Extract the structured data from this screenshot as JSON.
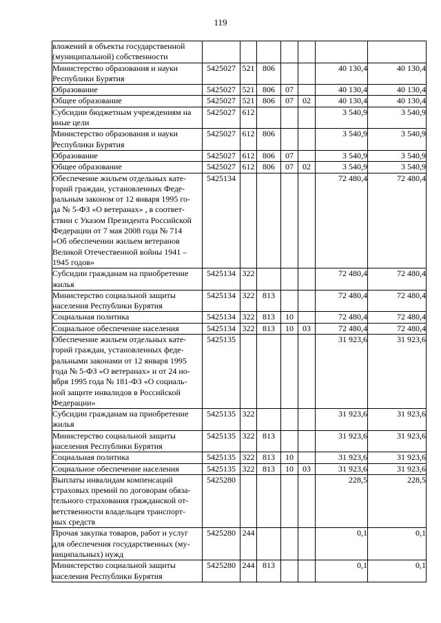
{
  "page": {
    "number": "119"
  },
  "table": {
    "columns": [
      "description",
      "target-code",
      "expense-type",
      "gvbs-code",
      "section",
      "subsection",
      "amount-1",
      "amount-2"
    ],
    "rows": [
      {
        "desc": "вложений в объекты государственной\n(муниципальной) собственности",
        "cells": [
          "",
          "",
          "",
          "",
          "",
          "",
          ""
        ]
      },
      {
        "desc": "Министерство образования и науки\nРеспублики Бурятия",
        "cells": [
          "5425027",
          "521",
          "806",
          "",
          "",
          "40 130,4",
          "40 130,4"
        ]
      },
      {
        "desc": "Образование",
        "cells": [
          "5425027",
          "521",
          "806",
          "07",
          "",
          "40 130,4",
          "40 130,4"
        ]
      },
      {
        "desc": "Общее образование",
        "cells": [
          "5425027",
          "521",
          "806",
          "07",
          "02",
          "40 130,4",
          "40 130,4"
        ]
      },
      {
        "desc": "Субсидии бюджетным учреждениям на\nиные цели",
        "cells": [
          "5425027",
          "612",
          "",
          "",
          "",
          "3 540,9",
          "3 540,9"
        ]
      },
      {
        "desc": "Министерство образования и науки\nРеспублики Бурятия",
        "cells": [
          "5425027",
          "612",
          "806",
          "",
          "",
          "3 540,9",
          "3 540,9"
        ]
      },
      {
        "desc": "Образование",
        "cells": [
          "5425027",
          "612",
          "806",
          "07",
          "",
          "3 540,9",
          "3 540,9"
        ]
      },
      {
        "desc": "Общее образование",
        "cells": [
          "5425027",
          "612",
          "806",
          "07",
          "02",
          "3 540,9",
          "3 540,9"
        ]
      },
      {
        "desc": "Обеспечение жильем отдельных кате-\nгорий граждан, установленных Феде-\nральным законом от 12 января 1995 го-\nда № 5-ФЗ «О ветеранах» , в соответ-\nствии с Указом Президента Российской\nФедерации от 7 мая 2008 года № 714\n«Об обеспечении жильем ветеранов\nВеликой Отечественной войны 1941 –\n1945 годов»",
        "cells": [
          "5425134",
          "",
          "",
          "",
          "",
          "72 480,4",
          "72 480,4"
        ]
      },
      {
        "desc": "Субсидии гражданам на приобретение\nжилья",
        "cells": [
          "5425134",
          "322",
          "",
          "",
          "",
          "72 480,4",
          "72 480,4"
        ]
      },
      {
        "desc": "Министерство социальной защиты\nнаселения Республики Бурятия",
        "cells": [
          "5425134",
          "322",
          "813",
          "",
          "",
          "72 480,4",
          "72 480,4"
        ]
      },
      {
        "desc": "Социальная политика",
        "cells": [
          "5425134",
          "322",
          "813",
          "10",
          "",
          "72 480,4",
          "72 480,4"
        ]
      },
      {
        "desc": "Социальное обеспечение населения",
        "cells": [
          "5425134",
          "322",
          "813",
          "10",
          "03",
          "72 480,4",
          "72 480,4"
        ]
      },
      {
        "desc": "Обеспечение жильем отдельных кате-\nгорий граждан, установленных феде-\nральными законами от 12 января 1995\nгода № 5-ФЗ «О ветеранах» и от 24 но-\nября 1995 года № 181-ФЗ «О социаль-\nной защите инвалидов в Российской\nФедерации»",
        "cells": [
          "5425135",
          "",
          "",
          "",
          "",
          "31 923,6",
          "31 923,6"
        ]
      },
      {
        "desc": "Субсидии гражданам на приобретение\nжилья",
        "cells": [
          "5425135",
          "322",
          "",
          "",
          "",
          "31 923,6",
          "31 923,6"
        ]
      },
      {
        "desc": "Министерство социальной защиты\nнаселения Республики Бурятия",
        "cells": [
          "5425135",
          "322",
          "813",
          "",
          "",
          "31 923,6",
          "31 923,6"
        ]
      },
      {
        "desc": "Социальная политика",
        "cells": [
          "5425135",
          "322",
          "813",
          "10",
          "",
          "31 923,6",
          "31 923,6"
        ]
      },
      {
        "desc": "Социальное обеспечение населения",
        "cells": [
          "5425135",
          "322",
          "813",
          "10",
          "03",
          "31 923,6",
          "31 923,6"
        ]
      },
      {
        "desc": "Выплаты инвалидам компенсаций\nстраховых премий по договорам обяза-\nтельного страхования гражданской от-\nветственности владельцев транспорт-\nных средств",
        "cells": [
          "5425280",
          "",
          "",
          "",
          "",
          "228,5",
          "228,5"
        ]
      },
      {
        "desc": "Прочая закупка товаров, работ и услуг\nдля обеспечения государственных (му-\nниципальных) нужд",
        "cells": [
          "5425280",
          "244",
          "",
          "",
          "",
          "0,1",
          "0,1"
        ]
      },
      {
        "desc": "Министерство социальной защиты\nнаселения Республики Бурятия",
        "cells": [
          "5425280",
          "244",
          "813",
          "",
          "",
          "0,1",
          "0,1"
        ]
      }
    ]
  }
}
